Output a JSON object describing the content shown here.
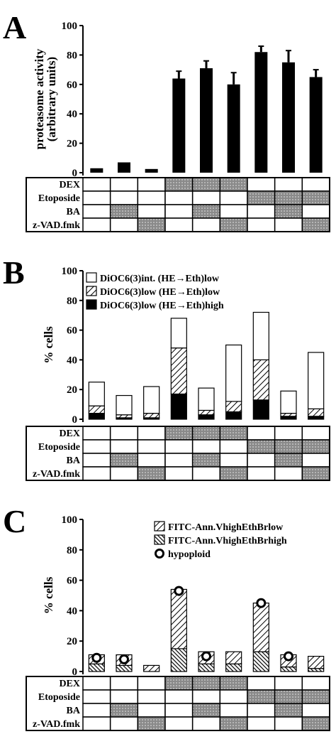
{
  "chart_data": [
    {
      "type": "bar",
      "panel": "A",
      "ylabel": [
        "proteasome activity",
        "(arbitrary units)"
      ],
      "values": [
        3,
        7,
        2.5,
        64,
        71,
        60,
        82,
        75,
        65
      ],
      "errors": [
        null,
        null,
        null,
        5,
        5,
        8,
        4,
        8,
        5
      ],
      "color": "#000000",
      "ylim": [
        0,
        100
      ],
      "yticks": [
        0,
        20,
        40,
        60,
        80,
        100
      ],
      "treatments": [
        {
          "name": "DEX",
          "applied": [
            0,
            0,
            0,
            1,
            1,
            1,
            0,
            0,
            0
          ]
        },
        {
          "name": "Etoposide",
          "applied": [
            0,
            0,
            0,
            0,
            0,
            0,
            1,
            1,
            1
          ]
        },
        {
          "name": "BA",
          "applied": [
            0,
            1,
            0,
            0,
            1,
            0,
            0,
            1,
            0
          ]
        },
        {
          "name": "z-VAD.fmk",
          "applied": [
            0,
            0,
            1,
            0,
            0,
            1,
            0,
            0,
            1
          ]
        }
      ]
    },
    {
      "type": "stacked_bar",
      "panel": "B",
      "ylabel": [
        "% cells"
      ],
      "legend_position": "upper left",
      "series": [
        {
          "name": "DiOC6(3)int. (HE→Eth)low",
          "color": "#ffffff",
          "pattern": "solid",
          "values": [
            16,
            13,
            18,
            20,
            15,
            38,
            32,
            15,
            38
          ]
        },
        {
          "name": "DiOC6(3)low (HE→Eth)low",
          "color": "#ffffff",
          "pattern": "diagonal",
          "values": [
            5,
            2,
            3,
            31,
            3,
            7,
            27,
            2,
            5
          ]
        },
        {
          "name": "DiOC6(3)low (HE→Eth)high",
          "color": "#000000",
          "pattern": "solid",
          "values": [
            4,
            1,
            1,
            17,
            3,
            5,
            13,
            2,
            2
          ]
        }
      ],
      "ylim": [
        0,
        100
      ],
      "yticks": [
        0,
        20,
        40,
        60,
        80,
        100
      ],
      "treatments": [
        {
          "name": "DEX",
          "applied": [
            0,
            0,
            0,
            1,
            1,
            1,
            0,
            0,
            0
          ]
        },
        {
          "name": "Etoposide",
          "applied": [
            0,
            0,
            0,
            0,
            0,
            0,
            1,
            1,
            1
          ]
        },
        {
          "name": "BA",
          "applied": [
            0,
            1,
            0,
            0,
            1,
            0,
            0,
            1,
            0
          ]
        },
        {
          "name": "z-VAD.fmk",
          "applied": [
            0,
            0,
            1,
            0,
            0,
            1,
            0,
            0,
            1
          ]
        }
      ]
    },
    {
      "type": "stacked_bar",
      "panel": "C",
      "ylabel": [
        "% cells"
      ],
      "legend_position": "upper center",
      "series": [
        {
          "name": "FITC-Ann.VhighEthBrlow",
          "color": "#ffffff",
          "pattern": "diagonal",
          "values": [
            6,
            7,
            4,
            39,
            8,
            8,
            32,
            8,
            8
          ]
        },
        {
          "name": "FITC-Ann.VhighEthBrhigh",
          "color": "#ffffff",
          "pattern": "dense",
          "values": [
            5,
            4,
            0,
            15,
            5,
            5,
            13,
            3,
            2
          ]
        },
        {
          "name": "hypoploid",
          "color": "#000000",
          "marker": "circle",
          "values": [
            9,
            8,
            null,
            53,
            10,
            null,
            45,
            10,
            null
          ]
        }
      ],
      "ylim": [
        0,
        100
      ],
      "yticks": [
        0,
        20,
        40,
        60,
        80,
        100
      ],
      "treatments": [
        {
          "name": "DEX",
          "applied": [
            0,
            0,
            0,
            1,
            1,
            1,
            0,
            0,
            0
          ]
        },
        {
          "name": "Etoposide",
          "applied": [
            0,
            0,
            0,
            0,
            0,
            0,
            1,
            1,
            1
          ]
        },
        {
          "name": "BA",
          "applied": [
            0,
            1,
            0,
            0,
            1,
            0,
            0,
            1,
            0
          ]
        },
        {
          "name": "z-VAD.fmk",
          "applied": [
            0,
            0,
            1,
            0,
            0,
            1,
            0,
            0,
            1
          ]
        }
      ]
    }
  ]
}
